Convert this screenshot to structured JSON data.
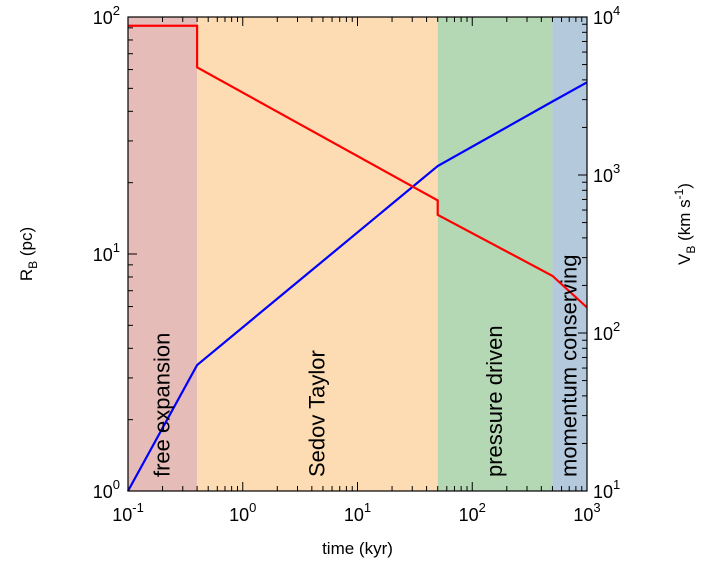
{
  "chart_data": {
    "type": "line",
    "xlabel": "time (kyr)",
    "ylabel_left": {
      "main": "R",
      "sub": "B",
      "rest": " (pc)"
    },
    "ylabel_right": {
      "main": "V",
      "sub": "B",
      "rest": " (km s",
      "sup": "-1",
      "close": ")"
    },
    "x_scale": "log",
    "x_range": [
      0.1,
      1000
    ],
    "y_left_scale": "log",
    "y_left_range": [
      1,
      100
    ],
    "y_right_scale": "log",
    "y_right_range": [
      10,
      10000
    ],
    "x_ticks": [
      {
        "base": "10",
        "exp": "-1",
        "v": 0.1
      },
      {
        "base": "10",
        "exp": "0",
        "v": 1
      },
      {
        "base": "10",
        "exp": "1",
        "v": 10
      },
      {
        "base": "10",
        "exp": "2",
        "v": 100
      },
      {
        "base": "10",
        "exp": "3",
        "v": 1000
      }
    ],
    "y_left_ticks": [
      {
        "base": "10",
        "exp": "0",
        "v": 1
      },
      {
        "base": "10",
        "exp": "1",
        "v": 10
      },
      {
        "base": "10",
        "exp": "2",
        "v": 100
      }
    ],
    "y_right_ticks": [
      {
        "base": "10",
        "exp": "1",
        "v": 10
      },
      {
        "base": "10",
        "exp": "2",
        "v": 100
      },
      {
        "base": "10",
        "exp": "3",
        "v": 1000
      },
      {
        "base": "10",
        "exp": "4",
        "v": 10000
      }
    ],
    "phases": [
      {
        "label": "free expansion",
        "x_start": 0.1,
        "x_end": 0.4,
        "color": "#e6bcb8"
      },
      {
        "label": "Sedov Taylor",
        "x_start": 0.4,
        "x_end": 50,
        "color": "#fddcb3"
      },
      {
        "label": "pressure driven",
        "x_start": 50,
        "x_end": 500,
        "color": "#b4d7b4"
      },
      {
        "label": "momentum conserving",
        "x_start": 500,
        "x_end": 1000,
        "color": "#b5c9dc"
      }
    ],
    "series": [
      {
        "axis": "left",
        "color": "#0000ff",
        "points": [
          [
            0.1,
            1.0
          ],
          [
            0.4,
            3.4
          ],
          [
            50,
            23.5
          ],
          [
            500,
            44
          ],
          [
            1000,
            53
          ]
        ]
      },
      {
        "axis": "right",
        "color": "#ff0000",
        "points": [
          [
            0.1,
            8800
          ],
          [
            0.4,
            8800
          ],
          [
            0.4,
            4800
          ],
          [
            50,
            690
          ],
          [
            50,
            560
          ],
          [
            500,
            230
          ],
          [
            1000,
            145
          ]
        ]
      }
    ],
    "grid": false
  }
}
